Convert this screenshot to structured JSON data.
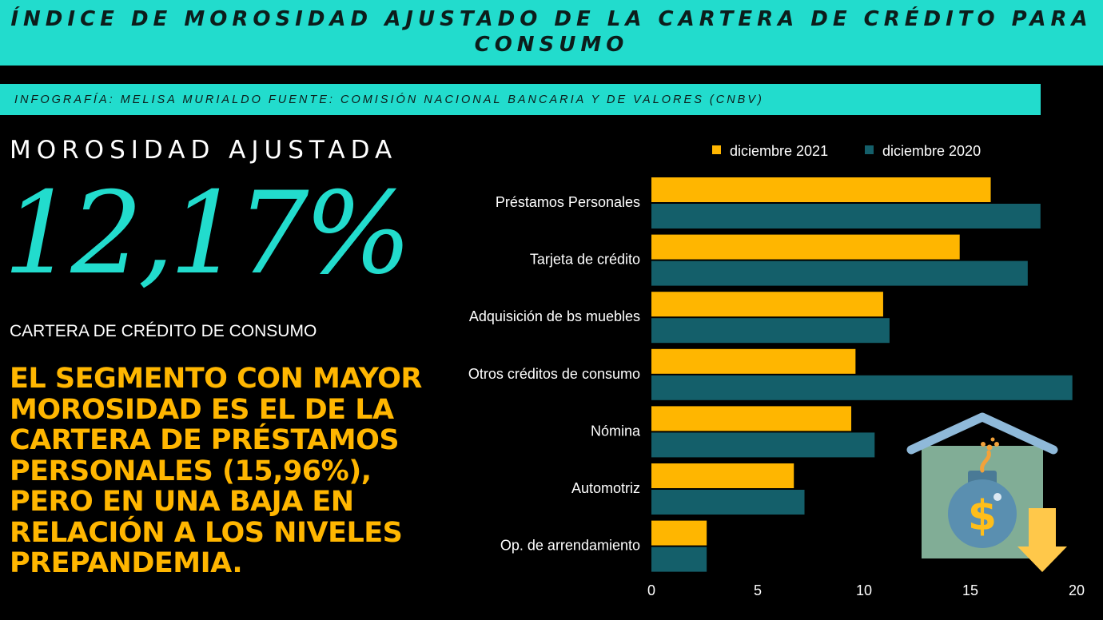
{
  "header": {
    "title": "ÍNDICE DE MOROSIDAD AJUSTADO DE LA CARTERA DE CRÉDITO PARA CONSUMO",
    "credit": "INFOGRAFÍA: MELISA MURIALDO FUENTE: COMISIÓN NACIONAL BANCARIA Y DE VALORES (CNBV)"
  },
  "kpi": {
    "heading": "MOROSIDAD AJUSTADA",
    "value": "12,17%",
    "subtitle": "CARTERA DE CRÉDITO DE CONSUMO"
  },
  "highlight": "EL SEGMENTO CON MAYOR MOROSIDAD ES EL DE LA CARTERA DE PRÉSTAMOS PERSONALES (15,96%), PERO EN UNA BAJA EN RELACIÓN A LOS NIVELES PREPANDEMIA.",
  "colors": {
    "accent": "#22dccd",
    "series_2021": "#ffb600",
    "series_2020": "#145f6a",
    "highlight_text": "#ffb600"
  },
  "icons": [
    "house-bomb-icon",
    "down-arrow-icon",
    "dollar-icon"
  ],
  "chart_data": {
    "type": "bar",
    "orientation": "horizontal",
    "categories": [
      "Préstamos Personales",
      "Tarjeta de crédito",
      "Adquisición de bs muebles",
      "Otros créditos de consumo",
      "Nómina",
      "Automotriz",
      "Op. de arrendamiento"
    ],
    "series": [
      {
        "name": "diciembre 2021",
        "values": [
          15.96,
          14.5,
          10.9,
          9.6,
          9.4,
          6.7,
          2.6
        ]
      },
      {
        "name": "diciembre 2020",
        "values": [
          18.3,
          17.7,
          11.2,
          19.8,
          10.5,
          7.2,
          2.6
        ]
      }
    ],
    "x_ticks": [
      0,
      5,
      10,
      15,
      20
    ],
    "xlim": [
      0,
      20
    ],
    "grid": false,
    "legend_position": "top"
  }
}
